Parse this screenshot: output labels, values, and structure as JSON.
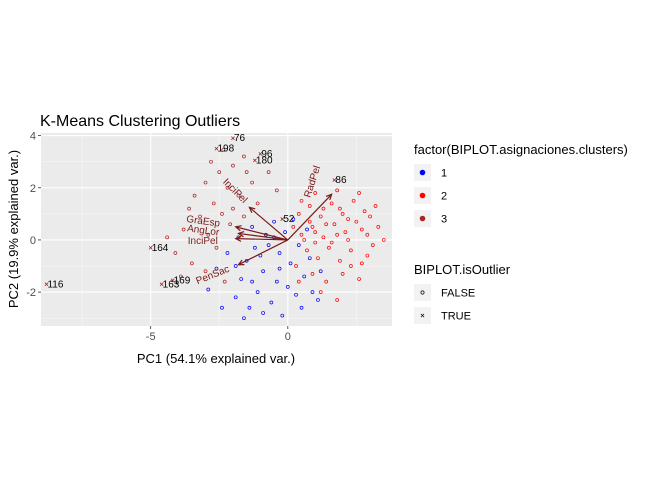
{
  "chart_data": {
    "type": "scatter",
    "title": "K-Means Clustering Outliers",
    "xlabel": "PC1 (54.1% explained var.)",
    "ylabel": "PC2 (19.9% explained var.)",
    "xlim": [
      -9.0,
      3.8
    ],
    "ylim": [
      -3.3,
      4.1
    ],
    "x_ticks": [
      -5,
      0
    ],
    "y_ticks": [
      -2,
      0,
      2,
      4
    ],
    "x_tick_labels": [
      "-5",
      "0"
    ],
    "y_tick_labels": [
      "-2",
      "0",
      "2",
      "4"
    ],
    "grid": true,
    "background": "#ebebeb",
    "cluster_colors": {
      "1": "#0000ff",
      "2": "#ff0000",
      "3": "#b22222"
    },
    "vector_color": "#7a1a1a",
    "outliers": [
      {
        "label": "76",
        "x": -2.0,
        "y": 3.9
      },
      {
        "label": "198",
        "x": -2.6,
        "y": 3.5
      },
      {
        "label": "96",
        "x": -1.0,
        "y": 3.3
      },
      {
        "label": "180",
        "x": -1.2,
        "y": 3.05
      },
      {
        "label": "86",
        "x": 1.7,
        "y": 2.3
      },
      {
        "label": "52",
        "x": -0.2,
        "y": 0.8
      },
      {
        "label": "164",
        "x": -5.0,
        "y": -0.3
      },
      {
        "label": "116",
        "x": -8.8,
        "y": -1.7
      },
      {
        "label": "169",
        "x": -4.2,
        "y": -1.55
      },
      {
        "label": "163",
        "x": -4.6,
        "y": -1.7
      }
    ],
    "loadings": [
      {
        "name": "RadPel",
        "x": 1.6,
        "y": 1.75,
        "label_x": 1.0,
        "label_y": 2.2,
        "angle": -72
      },
      {
        "name": "InciPel",
        "x": -1.4,
        "y": 1.25,
        "label_x": -2.0,
        "label_y": 1.8,
        "angle": 45
      },
      {
        "name": "GraEsp",
        "x": -1.9,
        "y": 0.5,
        "label_x": -3.1,
        "label_y": 0.6,
        "angle": 8
      },
      {
        "name": "AngLor",
        "x": -1.8,
        "y": 0.25,
        "label_x": -3.1,
        "label_y": 0.25,
        "angle": 8
      },
      {
        "name": "InciPel",
        "x": -1.9,
        "y": 0.05,
        "label_x": -3.1,
        "label_y": -0.15,
        "angle": 0
      },
      {
        "name": "PenSac",
        "x": -1.8,
        "y": -0.95,
        "label_x": -2.7,
        "label_y": -1.45,
        "angle": -22
      }
    ],
    "points": [
      {
        "x": -2.35,
        "y": 3.45,
        "c": 3
      },
      {
        "x": -2.0,
        "y": 2.85,
        "c": 3
      },
      {
        "x": -2.8,
        "y": 3.0,
        "c": 3
      },
      {
        "x": -1.6,
        "y": 3.2,
        "c": 3
      },
      {
        "x": -2.5,
        "y": 2.6,
        "c": 3
      },
      {
        "x": -3.0,
        "y": 2.2,
        "c": 3
      },
      {
        "x": -1.5,
        "y": 2.6,
        "c": 3
      },
      {
        "x": -2.2,
        "y": 2.0,
        "c": 3
      },
      {
        "x": -3.4,
        "y": 1.7,
        "c": 3
      },
      {
        "x": -2.7,
        "y": 1.4,
        "c": 3
      },
      {
        "x": -1.8,
        "y": 1.7,
        "c": 3
      },
      {
        "x": -2.4,
        "y": 1.0,
        "c": 3
      },
      {
        "x": -3.2,
        "y": 0.9,
        "c": 3
      },
      {
        "x": -2.0,
        "y": 1.2,
        "c": 3
      },
      {
        "x": -3.8,
        "y": 0.4,
        "c": 3
      },
      {
        "x": -2.9,
        "y": 0.2,
        "c": 3
      },
      {
        "x": -4.1,
        "y": -0.5,
        "c": 3
      },
      {
        "x": -3.5,
        "y": -0.9,
        "c": 3
      },
      {
        "x": -3.0,
        "y": -1.2,
        "c": 3
      },
      {
        "x": -3.9,
        "y": -1.4,
        "c": 3
      },
      {
        "x": -1.3,
        "y": 2.2,
        "c": 3
      },
      {
        "x": -0.7,
        "y": 2.6,
        "c": 3
      },
      {
        "x": -0.4,
        "y": 1.9,
        "c": 3
      },
      {
        "x": -2.6,
        "y": -0.3,
        "c": 3
      },
      {
        "x": -2.1,
        "y": 0.6,
        "c": 3
      },
      {
        "x": -1.6,
        "y": 0.9,
        "c": 3
      },
      {
        "x": -3.6,
        "y": 1.2,
        "c": 3
      },
      {
        "x": -4.4,
        "y": 0.1,
        "c": 3
      },
      {
        "x": -2.3,
        "y": -1.6,
        "c": 3
      },
      {
        "x": -1.1,
        "y": 1.4,
        "c": 3
      },
      {
        "x": -1.8,
        "y": 0.1,
        "c": 1
      },
      {
        "x": -1.2,
        "y": -0.3,
        "c": 1
      },
      {
        "x": -0.8,
        "y": 0.2,
        "c": 1
      },
      {
        "x": -0.3,
        "y": -0.5,
        "c": 1
      },
      {
        "x": -1.5,
        "y": -0.8,
        "c": 1
      },
      {
        "x": -0.9,
        "y": -1.2,
        "c": 1
      },
      {
        "x": -0.4,
        "y": -1.6,
        "c": 1
      },
      {
        "x": 0.1,
        "y": -0.9,
        "c": 1
      },
      {
        "x": -2.2,
        "y": -0.5,
        "c": 1
      },
      {
        "x": -1.7,
        "y": -1.5,
        "c": 1
      },
      {
        "x": -1.1,
        "y": -2.0,
        "c": 1
      },
      {
        "x": -0.6,
        "y": -2.4,
        "c": 1
      },
      {
        "x": -0.2,
        "y": -2.9,
        "c": 1
      },
      {
        "x": 0.3,
        "y": -2.1,
        "c": 1
      },
      {
        "x": 0.6,
        "y": -1.4,
        "c": 1
      },
      {
        "x": 0.9,
        "y": -2.0,
        "c": 1
      },
      {
        "x": -2.6,
        "y": -1.1,
        "c": 1
      },
      {
        "x": -1.9,
        "y": -2.2,
        "c": 1
      },
      {
        "x": -1.4,
        "y": -2.6,
        "c": 1
      },
      {
        "x": -0.7,
        "y": -0.2,
        "c": 1
      },
      {
        "x": -0.1,
        "y": 0.3,
        "c": 1
      },
      {
        "x": 0.4,
        "y": -0.2,
        "c": 1
      },
      {
        "x": 0.8,
        "y": -0.7,
        "c": 1
      },
      {
        "x": 1.2,
        "y": -1.2,
        "c": 1
      },
      {
        "x": -1.3,
        "y": 0.5,
        "c": 1
      },
      {
        "x": -0.5,
        "y": 0.7,
        "c": 1
      },
      {
        "x": 0.2,
        "y": 0.8,
        "c": 1
      },
      {
        "x": -2.9,
        "y": -1.9,
        "c": 1
      },
      {
        "x": -1.6,
        "y": -3.0,
        "c": 1
      },
      {
        "x": -0.9,
        "y": -2.8,
        "c": 1
      },
      {
        "x": 0.5,
        "y": -2.6,
        "c": 1
      },
      {
        "x": 1.1,
        "y": -2.3,
        "c": 1
      },
      {
        "x": -0.3,
        "y": -1.1,
        "c": 1
      },
      {
        "x": -1.0,
        "y": -0.6,
        "c": 1
      },
      {
        "x": -2.4,
        "y": -2.6,
        "c": 1
      },
      {
        "x": 0.0,
        "y": -1.8,
        "c": 1
      },
      {
        "x": 0.7,
        "y": 0.4,
        "c": 1
      },
      {
        "x": -0.5,
        "y": 0.1,
        "c": 1
      },
      {
        "x": -1.9,
        "y": -1.0,
        "c": 1
      },
      {
        "x": -1.3,
        "y": -1.6,
        "c": 1
      },
      {
        "x": 0.5,
        "y": 0.2,
        "c": 2
      },
      {
        "x": 0.9,
        "y": 0.5,
        "c": 2
      },
      {
        "x": 1.3,
        "y": 0.1,
        "c": 2
      },
      {
        "x": 1.7,
        "y": 0.6,
        "c": 2
      },
      {
        "x": 2.1,
        "y": 0.3,
        "c": 2
      },
      {
        "x": 2.5,
        "y": 0.7,
        "c": 2
      },
      {
        "x": 2.9,
        "y": 0.2,
        "c": 2
      },
      {
        "x": 3.3,
        "y": 0.5,
        "c": 2
      },
      {
        "x": 0.7,
        "y": -0.4,
        "c": 2
      },
      {
        "x": 1.1,
        "y": -0.7,
        "c": 2
      },
      {
        "x": 1.5,
        "y": -0.3,
        "c": 2
      },
      {
        "x": 1.9,
        "y": -0.8,
        "c": 2
      },
      {
        "x": 2.3,
        "y": -0.4,
        "c": 2
      },
      {
        "x": 2.7,
        "y": -0.9,
        "c": 2
      },
      {
        "x": 3.1,
        "y": -0.2,
        "c": 2
      },
      {
        "x": 0.4,
        "y": 1.0,
        "c": 2
      },
      {
        "x": 0.8,
        "y": 1.3,
        "c": 2
      },
      {
        "x": 1.2,
        "y": 0.9,
        "c": 2
      },
      {
        "x": 1.6,
        "y": 1.4,
        "c": 2
      },
      {
        "x": 2.0,
        "y": 1.0,
        "c": 2
      },
      {
        "x": 2.4,
        "y": 1.5,
        "c": 2
      },
      {
        "x": 2.8,
        "y": 1.1,
        "c": 2
      },
      {
        "x": 1.0,
        "y": 1.8,
        "c": 2
      },
      {
        "x": 1.8,
        "y": 1.9,
        "c": 2
      },
      {
        "x": 2.6,
        "y": 1.8,
        "c": 2
      },
      {
        "x": 0.3,
        "y": -1.0,
        "c": 2
      },
      {
        "x": 0.9,
        "y": -1.3,
        "c": 2
      },
      {
        "x": 1.4,
        "y": -1.6,
        "c": 2
      },
      {
        "x": 2.0,
        "y": -1.3,
        "c": 2
      },
      {
        "x": 2.6,
        "y": -1.5,
        "c": 2
      },
      {
        "x": 1.2,
        "y": -2.0,
        "c": 2
      },
      {
        "x": 1.8,
        "y": -2.3,
        "c": 2
      },
      {
        "x": 3.5,
        "y": 0.0,
        "c": 2
      },
      {
        "x": 3.0,
        "y": 0.9,
        "c": 2
      },
      {
        "x": 0.2,
        "y": 0.5,
        "c": 2
      },
      {
        "x": 0.6,
        "y": 0.0,
        "c": 2
      },
      {
        "x": 1.0,
        "y": 0.3,
        "c": 2
      },
      {
        "x": 1.4,
        "y": 0.6,
        "c": 2
      },
      {
        "x": 1.8,
        "y": 0.2,
        "c": 2
      },
      {
        "x": 2.2,
        "y": 0.0,
        "c": 2
      },
      {
        "x": 2.2,
        "y": 0.8,
        "c": 2
      },
      {
        "x": 1.6,
        "y": -0.1,
        "c": 2
      },
      {
        "x": 1.0,
        "y": -0.1,
        "c": 2
      },
      {
        "x": 0.5,
        "y": 1.5,
        "c": 2
      },
      {
        "x": 3.2,
        "y": 1.3,
        "c": 2
      },
      {
        "x": 2.9,
        "y": -0.6,
        "c": 2
      },
      {
        "x": 0.4,
        "y": -1.6,
        "c": 2
      },
      {
        "x": 2.3,
        "y": -1.0,
        "c": 2
      },
      {
        "x": 1.3,
        "y": 1.2,
        "c": 2
      },
      {
        "x": 2.7,
        "y": 0.4,
        "c": 2
      },
      {
        "x": 0.8,
        "y": 0.7,
        "c": 2
      },
      {
        "x": 1.9,
        "y": 1.2,
        "c": 2
      }
    ]
  },
  "legend_clusters": {
    "title": "factor(BIPLOT.asignaciones.clusters)",
    "items": [
      {
        "label": "1",
        "color": "#0000ff"
      },
      {
        "label": "2",
        "color": "#ff0000"
      },
      {
        "label": "3",
        "color": "#b22222"
      }
    ]
  },
  "legend_outlier": {
    "title": "BIPLOT.isOutlier",
    "items": [
      {
        "label": "FALSE",
        "symbol": "circle-icon"
      },
      {
        "label": "TRUE",
        "symbol": "cross-icon"
      }
    ]
  }
}
